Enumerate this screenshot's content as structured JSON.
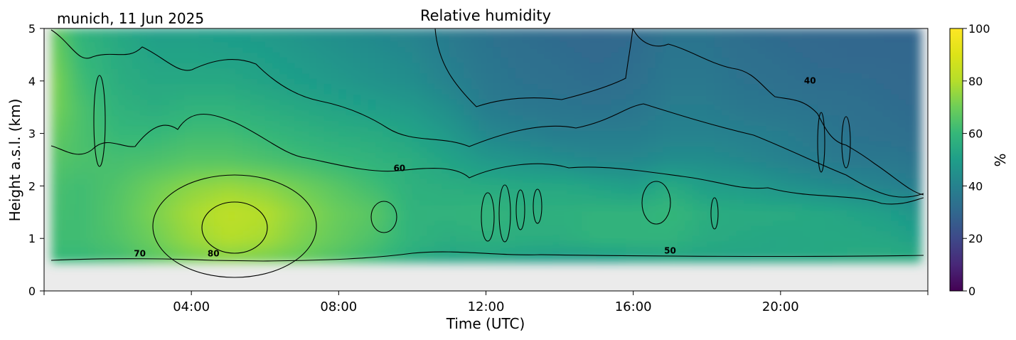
{
  "chart_data": {
    "type": "heatmap",
    "title": "Relative humidity",
    "subtitle": "munich, 11 Jun 2025",
    "xlabel": "Time (UTC)",
    "ylabel": "Height a.s.l. (km)",
    "xlim": [
      0,
      24
    ],
    "ylim": [
      0,
      5
    ],
    "x_ticks": [
      {
        "value": 4,
        "label": "04:00"
      },
      {
        "value": 8,
        "label": "08:00"
      },
      {
        "value": 12,
        "label": "12:00"
      },
      {
        "value": 16,
        "label": "16:00"
      },
      {
        "value": 20,
        "label": "20:00"
      }
    ],
    "y_ticks": [
      0,
      1,
      2,
      3,
      4,
      5
    ],
    "data_bottom_km": 0.55,
    "no_data_color": "#ebebeb",
    "colorbar": {
      "label": "%",
      "range": [
        0,
        100
      ],
      "ticks": [
        0,
        20,
        40,
        60,
        80,
        100
      ],
      "colormap": "viridis"
    },
    "contour_levels": [
      40,
      50,
      60,
      70,
      80
    ],
    "contour_labels": [
      {
        "text": "70",
        "x": 2.6,
        "y": 0.66
      },
      {
        "text": "80",
        "x": 4.6,
        "y": 0.66
      },
      {
        "text": "50",
        "x": 17.0,
        "y": 0.71
      },
      {
        "text": "60",
        "x": 9.65,
        "y": 2.28
      },
      {
        "text": "40",
        "x": 20.8,
        "y": 3.95
      }
    ],
    "humidity_field": {
      "time_h": [
        0,
        1,
        2,
        3,
        4,
        5,
        6,
        7,
        8,
        9,
        10,
        11,
        12,
        13,
        14,
        15,
        16,
        17,
        18,
        19,
        20,
        21,
        22,
        23,
        24
      ],
      "height_km": [
        0.55,
        1.0,
        1.5,
        2.0,
        2.5,
        3.0,
        3.5,
        4.0,
        4.5,
        5.0
      ],
      "rh_percent": [
        [
          60,
          60,
          62,
          66,
          70,
          72,
          70,
          68,
          64,
          60,
          55,
          52,
          52,
          50,
          48,
          48,
          50,
          52,
          52,
          52,
          54,
          54,
          55,
          56,
          56
        ],
        [
          62,
          62,
          65,
          70,
          76,
          80,
          78,
          72,
          68,
          64,
          58,
          56,
          57,
          56,
          56,
          58,
          58,
          58,
          55,
          54,
          53,
          54,
          54,
          53,
          50
        ],
        [
          63,
          62,
          66,
          72,
          78,
          82,
          80,
          74,
          69,
          66,
          58,
          58,
          59,
          57,
          57,
          58,
          58,
          60,
          56,
          55,
          55,
          54,
          52,
          50,
          46
        ],
        [
          64,
          62,
          65,
          70,
          74,
          76,
          74,
          70,
          66,
          62,
          57,
          56,
          55,
          54,
          54,
          52,
          50,
          55,
          50,
          49,
          46,
          44,
          42,
          40,
          38
        ],
        [
          66,
          64,
          63,
          64,
          66,
          66,
          64,
          62,
          60,
          58,
          56,
          52,
          48,
          46,
          44,
          42,
          42,
          44,
          44,
          42,
          40,
          38,
          36,
          36,
          34
        ],
        [
          70,
          64,
          60,
          60,
          62,
          62,
          60,
          58,
          56,
          55,
          52,
          48,
          42,
          40,
          38,
          38,
          38,
          40,
          40,
          39,
          38,
          36,
          34,
          33,
          32
        ],
        [
          74,
          64,
          58,
          56,
          58,
          58,
          56,
          54,
          52,
          50,
          48,
          44,
          38,
          36,
          35,
          34,
          35,
          38,
          38,
          36,
          35,
          34,
          33,
          32,
          31
        ],
        [
          76,
          62,
          56,
          54,
          54,
          54,
          52,
          50,
          48,
          46,
          44,
          40,
          36,
          34,
          33,
          32,
          33,
          36,
          36,
          34,
          33,
          32,
          32,
          31,
          30
        ],
        [
          74,
          60,
          55,
          52,
          52,
          51,
          50,
          48,
          46,
          44,
          42,
          38,
          35,
          33,
          32,
          31,
          32,
          35,
          35,
          33,
          32,
          31,
          30,
          30,
          30
        ],
        [
          72,
          58,
          54,
          50,
          50,
          49,
          48,
          46,
          44,
          42,
          40,
          37,
          34,
          32,
          31,
          30,
          31,
          34,
          34,
          32,
          31,
          30,
          30,
          29,
          29
        ]
      ]
    }
  }
}
